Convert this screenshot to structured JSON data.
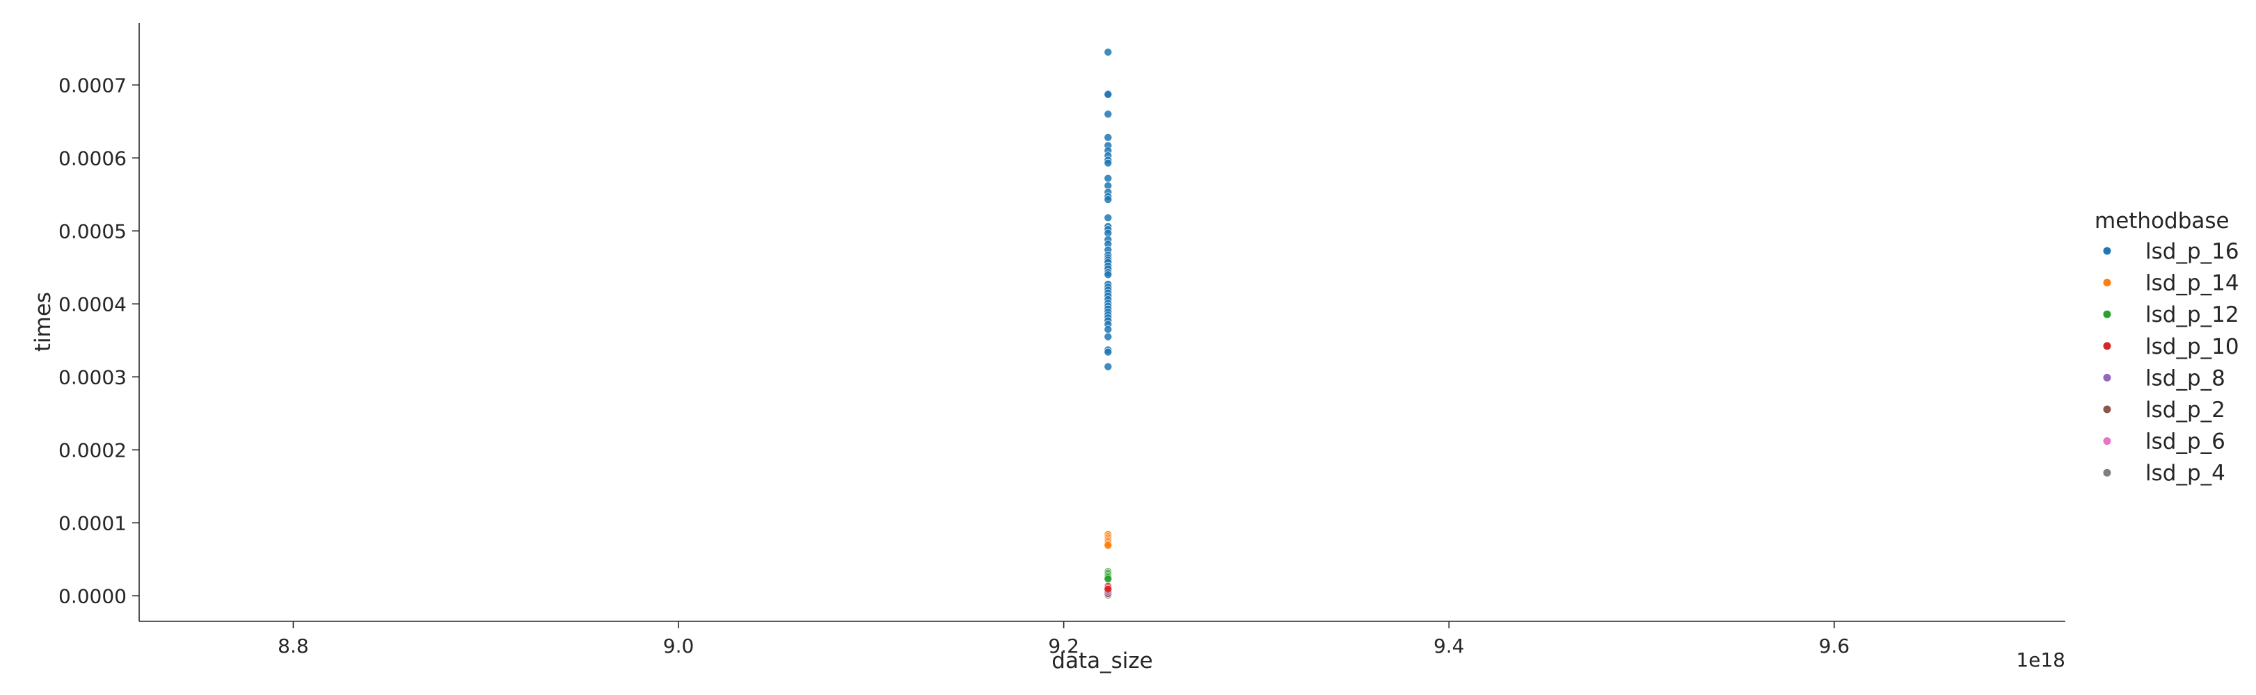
{
  "chart_data": {
    "type": "scatter",
    "xlabel": "data_size",
    "ylabel": "times",
    "x_offset_label": "1e18",
    "xlim": [
      8.72,
      9.72
    ],
    "ylim": [
      -3.5e-05,
      0.000785
    ],
    "x_ticks": [
      8.8,
      9.0,
      9.2,
      9.4,
      9.6
    ],
    "x_tick_labels": [
      "8.8",
      "9.0",
      "9.2",
      "9.4",
      "9.6"
    ],
    "y_ticks": [
      0.0,
      0.0001,
      0.0002,
      0.0003,
      0.0004,
      0.0005,
      0.0006,
      0.0007
    ],
    "y_tick_labels": [
      "0.0000",
      "0.0001",
      "0.0002",
      "0.0003",
      "0.0004",
      "0.0005",
      "0.0006",
      "0.0007"
    ],
    "grid": false,
    "legend": {
      "title": "methodbase",
      "placement": "outside-right"
    },
    "series": [
      {
        "name": "lsd_p_16",
        "color": "#1f77b4",
        "x": 9.223,
        "y": [
          0.000745,
          0.000688,
          0.000687,
          0.00066,
          0.000628,
          0.000617,
          0.00061,
          0.000603,
          0.000597,
          0.000593,
          0.000572,
          0.000562,
          0.000553,
          0.000547,
          0.000543,
          0.000518,
          0.000506,
          0.000502,
          0.000497,
          0.000488,
          0.000482,
          0.000474,
          0.000467,
          0.000463,
          0.00046,
          0.000457,
          0.000452,
          0.000448,
          0.000443,
          0.00044,
          0.000427,
          0.000423,
          0.000419,
          0.000415,
          0.000411,
          0.000406,
          0.000401,
          0.000397,
          0.000393,
          0.000389,
          0.000385,
          0.000381,
          0.000377,
          0.000372,
          0.000365,
          0.000355,
          0.000337,
          0.000334,
          0.000314
        ]
      },
      {
        "name": "lsd_p_14",
        "color": "#ff7f0e",
        "x": 9.223,
        "y": [
          8.4e-05,
          8.1e-05,
          7.9e-05,
          7.7e-05,
          7.5e-05,
          7.3e-05,
          7.1e-05,
          6.9e-05
        ]
      },
      {
        "name": "lsd_p_12",
        "color": "#2ca02c",
        "x": 9.223,
        "y": [
          3.3e-05,
          3.1e-05,
          2.9e-05,
          2.7e-05,
          2.5e-05,
          2.3e-05
        ]
      },
      {
        "name": "lsd_p_10",
        "color": "#d62728",
        "x": 9.223,
        "y": [
          1.3e-05,
          1.1e-05,
          9e-06
        ]
      },
      {
        "name": "lsd_p_8",
        "color": "#9467bd",
        "x": 9.223,
        "y": [
          7e-06,
          6e-06
        ]
      },
      {
        "name": "lsd_p_2",
        "color": "#8c564b",
        "x": 9.223,
        "y": [
          4e-06,
          3e-06
        ]
      },
      {
        "name": "lsd_p_6",
        "color": "#e377c2",
        "x": 9.223,
        "y": [
          3e-06
        ]
      },
      {
        "name": "lsd_p_4",
        "color": "#7f7f7f",
        "x": 9.223,
        "y": [
          2e-06,
          1e-06
        ]
      }
    ]
  }
}
